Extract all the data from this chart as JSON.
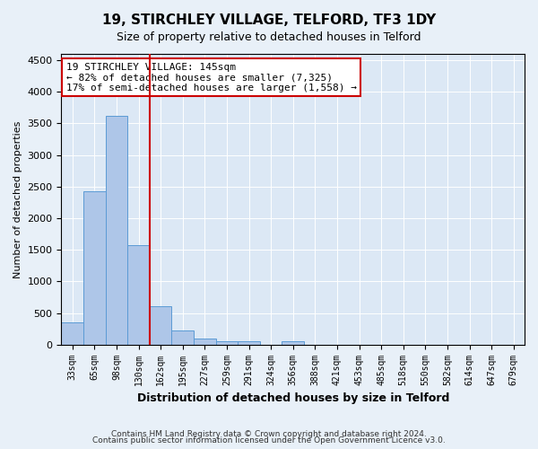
{
  "title1": "19, STIRCHLEY VILLAGE, TELFORD, TF3 1DY",
  "title2": "Size of property relative to detached houses in Telford",
  "xlabel": "Distribution of detached houses by size in Telford",
  "ylabel": "Number of detached properties",
  "bar_values": [
    350,
    2420,
    3620,
    1575,
    610,
    230,
    100,
    50,
    50,
    0,
    50,
    0,
    0,
    0,
    0,
    0,
    0,
    0,
    0,
    0,
    0
  ],
  "categories": [
    "33sqm",
    "65sqm",
    "98sqm",
    "130sqm",
    "162sqm",
    "195sqm",
    "227sqm",
    "259sqm",
    "291sqm",
    "324sqm",
    "356sqm",
    "388sqm",
    "421sqm",
    "453sqm",
    "485sqm",
    "518sqm",
    "550sqm",
    "582sqm",
    "614sqm",
    "647sqm",
    "679sqm"
  ],
  "bar_color": "#aec6e8",
  "bar_edge_color": "#5b9bd5",
  "vline_color": "#cc0000",
  "vline_pos": 3.5,
  "ylim": [
    0,
    4600
  ],
  "yticks": [
    0,
    500,
    1000,
    1500,
    2000,
    2500,
    3000,
    3500,
    4000,
    4500
  ],
  "annotation_text": "19 STIRCHLEY VILLAGE: 145sqm\n← 82% of detached houses are smaller (7,325)\n17% of semi-detached houses are larger (1,558) →",
  "annotation_box_color": "#cc0000",
  "footer1": "Contains HM Land Registry data © Crown copyright and database right 2024.",
  "footer2": "Contains public sector information licensed under the Open Government Licence v3.0.",
  "bg_color": "#e8f0f8",
  "plot_bg_color": "#dce8f5"
}
